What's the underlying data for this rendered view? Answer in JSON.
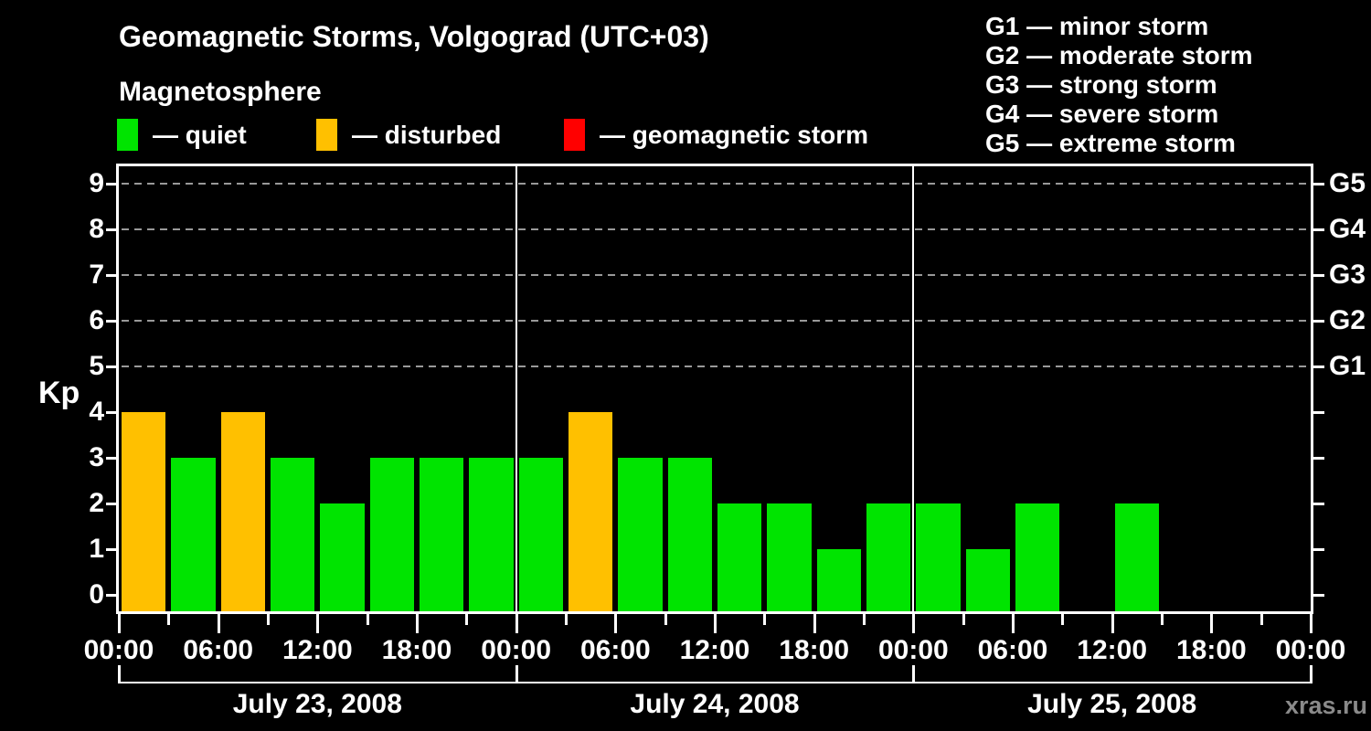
{
  "page": {
    "background": "#000000",
    "watermark": "xras.ru"
  },
  "header": {
    "title": "Geomagnetic Storms, Volgograd (UTC+03)",
    "subtitle": "Magnetosphere"
  },
  "legend": {
    "items": [
      {
        "key": "quiet",
        "label": "— quiet",
        "color": "#00e400"
      },
      {
        "key": "disturbed",
        "label": "— disturbed",
        "color": "#ffc000"
      },
      {
        "key": "storm",
        "label": "— geomagnetic storm",
        "color": "#ff0000"
      }
    ]
  },
  "storm_scale": [
    "G1 — minor storm",
    "G2 — moderate storm",
    "G3 — strong storm",
    "G4 — severe storm",
    "G5 — extreme storm"
  ],
  "chart_data": {
    "type": "bar",
    "title": "Geomagnetic Storms, Volgograd (UTC+03)",
    "ylabel": "Kp",
    "ylim": [
      0,
      9
    ],
    "y_ticks": [
      0,
      1,
      2,
      3,
      4,
      5,
      6,
      7,
      8,
      9
    ],
    "grid_levels": [
      5,
      6,
      7,
      8,
      9
    ],
    "grid_style": "dashed",
    "legend_position": "top",
    "right_axis": [
      {
        "kp": 5,
        "label": "G1"
      },
      {
        "kp": 6,
        "label": "G2"
      },
      {
        "kp": 7,
        "label": "G3"
      },
      {
        "kp": 8,
        "label": "G4"
      },
      {
        "kp": 9,
        "label": "G5"
      }
    ],
    "x_tick_labels": [
      "00:00",
      "06:00",
      "12:00",
      "18:00",
      "00:00",
      "06:00",
      "12:00",
      "18:00",
      "00:00",
      "06:00",
      "12:00",
      "18:00",
      "00:00"
    ],
    "bar_interval_hours": 3,
    "days": [
      {
        "date": "July 23, 2008",
        "values": [
          4,
          3,
          4,
          3,
          2,
          3,
          3,
          3
        ],
        "statuses": [
          "disturbed",
          "quiet",
          "disturbed",
          "quiet",
          "quiet",
          "quiet",
          "quiet",
          "quiet"
        ]
      },
      {
        "date": "July 24, 2008",
        "values": [
          3,
          4,
          3,
          3,
          2,
          2,
          1,
          2
        ],
        "statuses": [
          "quiet",
          "disturbed",
          "quiet",
          "quiet",
          "quiet",
          "quiet",
          "quiet",
          "quiet"
        ]
      },
      {
        "date": "July 25, 2008",
        "values": [
          2,
          1,
          2,
          null,
          2,
          null,
          null,
          null
        ],
        "statuses": [
          "quiet",
          "quiet",
          "quiet",
          null,
          "quiet",
          null,
          null,
          null
        ]
      }
    ],
    "axis_color": "#ffffff",
    "grid_color": "#999999"
  }
}
